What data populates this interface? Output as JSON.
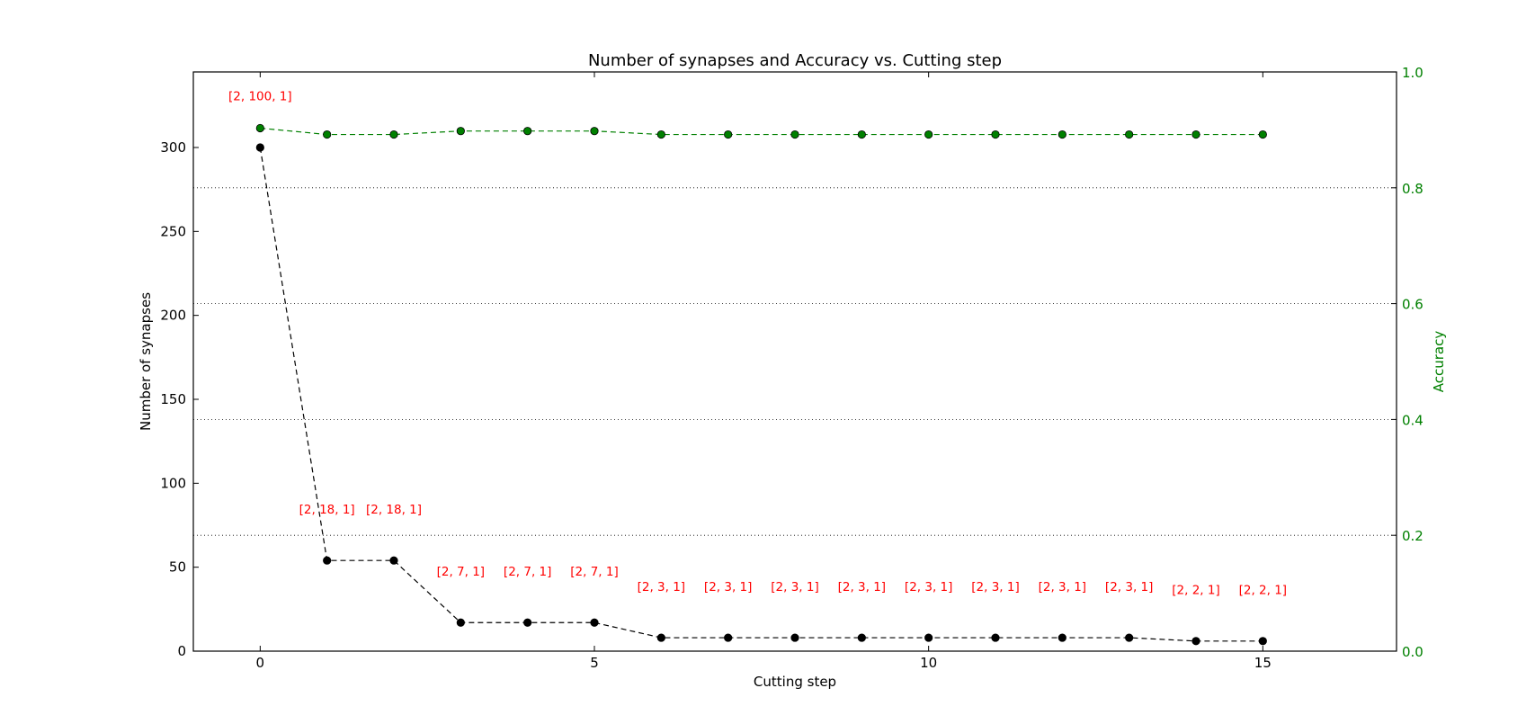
{
  "chart_data": {
    "type": "line",
    "title": "Number of synapses and Accuracy vs. Cutting step",
    "xlabel": "Cutting step",
    "ylabel": "Number of synapses",
    "y2label": "Accuracy",
    "xlim": [
      -1,
      17
    ],
    "ylim": [
      0,
      345
    ],
    "y2lim": [
      0,
      1.0
    ],
    "xticks": [
      0,
      5,
      10,
      15
    ],
    "yticks": [
      0,
      50,
      100,
      150,
      200,
      250,
      300
    ],
    "y2ticks": [
      0.0,
      0.2,
      0.4,
      0.6,
      0.8,
      1.0
    ],
    "y2tick_labels": [
      "0.0",
      "0.2",
      "0.4",
      "0.6",
      "0.8",
      "1.0"
    ],
    "grid": "horizontal-dotted-right-axis",
    "x": [
      0,
      1,
      2,
      3,
      4,
      5,
      6,
      7,
      8,
      9,
      10,
      11,
      12,
      13,
      14,
      15
    ],
    "series": [
      {
        "axis": "left",
        "color": "#000000",
        "values": [
          300,
          54,
          54,
          17,
          17,
          17,
          8,
          8,
          8,
          8,
          8,
          8,
          8,
          8,
          6,
          6
        ]
      },
      {
        "axis": "right",
        "color": "#008000",
        "values": [
          0.903,
          0.892,
          0.892,
          0.898,
          0.898,
          0.898,
          0.892,
          0.892,
          0.892,
          0.892,
          0.892,
          0.892,
          0.892,
          0.892,
          0.892,
          0.892
        ]
      }
    ],
    "annotations": [
      {
        "x": 0,
        "y": 328,
        "text": "[2, 100, 1]"
      },
      {
        "x": 1,
        "y": 82,
        "text": "[2, 18, 1]"
      },
      {
        "x": 2,
        "y": 82,
        "text": "[2, 18, 1]"
      },
      {
        "x": 3,
        "y": 45,
        "text": "[2, 7, 1]"
      },
      {
        "x": 4,
        "y": 45,
        "text": "[2, 7, 1]"
      },
      {
        "x": 5,
        "y": 45,
        "text": "[2, 7, 1]"
      },
      {
        "x": 6,
        "y": 36,
        "text": "[2, 3, 1]"
      },
      {
        "x": 7,
        "y": 36,
        "text": "[2, 3, 1]"
      },
      {
        "x": 8,
        "y": 36,
        "text": "[2, 3, 1]"
      },
      {
        "x": 9,
        "y": 36,
        "text": "[2, 3, 1]"
      },
      {
        "x": 10,
        "y": 36,
        "text": "[2, 3, 1]"
      },
      {
        "x": 11,
        "y": 36,
        "text": "[2, 3, 1]"
      },
      {
        "x": 12,
        "y": 36,
        "text": "[2, 3, 1]"
      },
      {
        "x": 13,
        "y": 36,
        "text": "[2, 3, 1]"
      },
      {
        "x": 14,
        "y": 34,
        "text": "[2, 2, 1]"
      },
      {
        "x": 15,
        "y": 34,
        "text": "[2, 2, 1]"
      }
    ],
    "colors": {
      "axis": "#000000",
      "right_axis": "#008000",
      "annotation": "#ff0000",
      "grid": "#000000"
    }
  }
}
